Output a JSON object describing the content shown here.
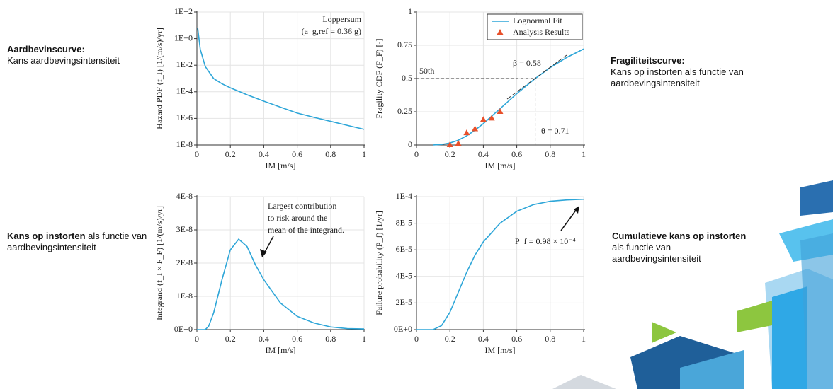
{
  "chart_data": [
    {
      "type": "line",
      "log_y": true,
      "grid": true,
      "color": "#2ea6d8",
      "annotations": [
        "Loppersum",
        "(a_g,ref = 0.36 g)"
      ],
      "x_label": "IM [m/s]",
      "y_label": "Hazard PDF (f_I) [1/(m/s)/yr]",
      "x": [
        0.005,
        0.02,
        0.05,
        0.1,
        0.15,
        0.2,
        0.3,
        0.4,
        0.5,
        0.6,
        0.7,
        0.8,
        0.9,
        1.0
      ],
      "values": [
        6,
        0.16,
        0.008,
        0.001,
        0.0004,
        0.0002,
        6e-05,
        2e-05,
        7e-06,
        2.5e-06,
        1.2e-06,
        6e-07,
        3e-07,
        1.5e-07
      ],
      "xlim": [
        0,
        1
      ],
      "xticks": [
        0,
        0.2,
        0.4,
        0.6,
        0.8,
        1
      ],
      "ylim": [
        1e-08,
        100
      ],
      "yticks": [
        {
          "value": 100,
          "label": "1E+2"
        },
        {
          "value": 1,
          "label": "1E+0"
        },
        {
          "value": 0.01,
          "label": "1E-2"
        },
        {
          "value": 0.0001,
          "label": "1E-4"
        },
        {
          "value": 1e-06,
          "label": "1E-6"
        },
        {
          "value": 1e-08,
          "label": "1E-8"
        }
      ]
    },
    {
      "type": "line",
      "grid": true,
      "legend": "top-right",
      "annotations": [
        "50th",
        "β = 0.58",
        "θ = 0.71"
      ],
      "x_label": "IM [m/s]",
      "y_label": "Fragility CDF (F_F) [-]",
      "series": [
        {
          "name": "Lognormal Fit",
          "type": "line",
          "color": "#2ea6d8",
          "x": [
            0.1,
            0.15,
            0.2,
            0.25,
            0.3,
            0.35,
            0.4,
            0.5,
            0.6,
            0.71,
            0.8,
            0.9,
            1.0
          ],
          "values": [
            0.0004,
            0.004,
            0.015,
            0.036,
            0.069,
            0.111,
            0.161,
            0.273,
            0.386,
            0.5,
            0.582,
            0.659,
            0.722
          ]
        },
        {
          "name": "Analysis Results",
          "type": "scatter",
          "color": "#e8502a",
          "x": [
            0.2,
            0.25,
            0.3,
            0.35,
            0.4,
            0.45,
            0.5
          ],
          "values": [
            0,
            0.01,
            0.09,
            0.12,
            0.19,
            0.2,
            0.25
          ]
        }
      ],
      "xlim": [
        0,
        1
      ],
      "xticks": [
        0,
        0.2,
        0.4,
        0.6,
        0.8,
        1
      ],
      "ylim": [
        0,
        1
      ],
      "yticks": [
        0,
        0.25,
        0.5,
        0.75,
        1
      ]
    },
    {
      "type": "line",
      "grid": true,
      "color": "#2ea6d8",
      "annotations": [
        "Largest contribution",
        "to risk around the",
        "mean of the integrand."
      ],
      "x_label": "IM [m/s]",
      "y_label": "Integrand (f_I × F_F) [1/(m/s)/yr]",
      "x": [
        0,
        0.05,
        0.07,
        0.1,
        0.15,
        0.2,
        0.25,
        0.3,
        0.35,
        0.4,
        0.5,
        0.6,
        0.7,
        0.8,
        0.9,
        1.0
      ],
      "values": [
        0,
        0,
        1e-09,
        5e-09,
        1.5e-08,
        2.4e-08,
        2.72e-08,
        2.5e-08,
        1.95e-08,
        1.5e-08,
        8e-09,
        4e-09,
        2e-09,
        8e-10,
        3e-10,
        2e-10
      ],
      "xlim": [
        0,
        1
      ],
      "xticks": [
        0,
        0.2,
        0.4,
        0.6,
        0.8,
        1
      ],
      "ylim": [
        0,
        4e-08
      ],
      "yticks": [
        {
          "value": 0,
          "label": "0E+0"
        },
        {
          "value": 1e-08,
          "label": "1E-8"
        },
        {
          "value": 2e-08,
          "label": "2E-8"
        },
        {
          "value": 3e-08,
          "label": "3E-8"
        },
        {
          "value": 4e-08,
          "label": "4E-8"
        }
      ]
    },
    {
      "type": "line",
      "grid": true,
      "color": "#2ea6d8",
      "annotations": [
        "P_f = 0.98 × 10⁻⁴"
      ],
      "x_label": "IM [m/s]",
      "y_label": "Failure probability (P_f) [1/yr]",
      "x": [
        0,
        0.1,
        0.15,
        0.2,
        0.25,
        0.3,
        0.35,
        0.4,
        0.5,
        0.6,
        0.7,
        0.8,
        0.9,
        1.0
      ],
      "values": [
        0,
        0,
        3e-06,
        1.3e-05,
        2.8e-05,
        4.3e-05,
        5.6e-05,
        6.6e-05,
        8e-05,
        8.9e-05,
        9.4e-05,
        9.65e-05,
        9.75e-05,
        9.8e-05
      ],
      "xlim": [
        0,
        1
      ],
      "xticks": [
        0,
        0.2,
        0.4,
        0.6,
        0.8,
        1
      ],
      "ylim": [
        0,
        0.0001
      ],
      "yticks": [
        {
          "value": 0,
          "label": "0E+0"
        },
        {
          "value": 2e-05,
          "label": "2E-5"
        },
        {
          "value": 4e-05,
          "label": "4E-5"
        },
        {
          "value": 6e-05,
          "label": "6E-5"
        },
        {
          "value": 8e-05,
          "label": "8E-5"
        },
        {
          "value": 0.0001,
          "label": "1E-4"
        }
      ]
    }
  ],
  "captions": [
    {
      "bold": "Aardbevinscurve:",
      "text": "Kans aardbevingsintensiteit"
    },
    {
      "bold": "Kans op instorten",
      "text": " als functie van  aardbevingsintensiteit"
    },
    {
      "bold": "Fragiliteitscurve:",
      "text": "Kans op instorten als functie van aardbevingsintensiteit"
    },
    {
      "bold": "Cumulatieve kans op instorten",
      "text": " als functie van aardbevingsintensiteit"
    }
  ]
}
